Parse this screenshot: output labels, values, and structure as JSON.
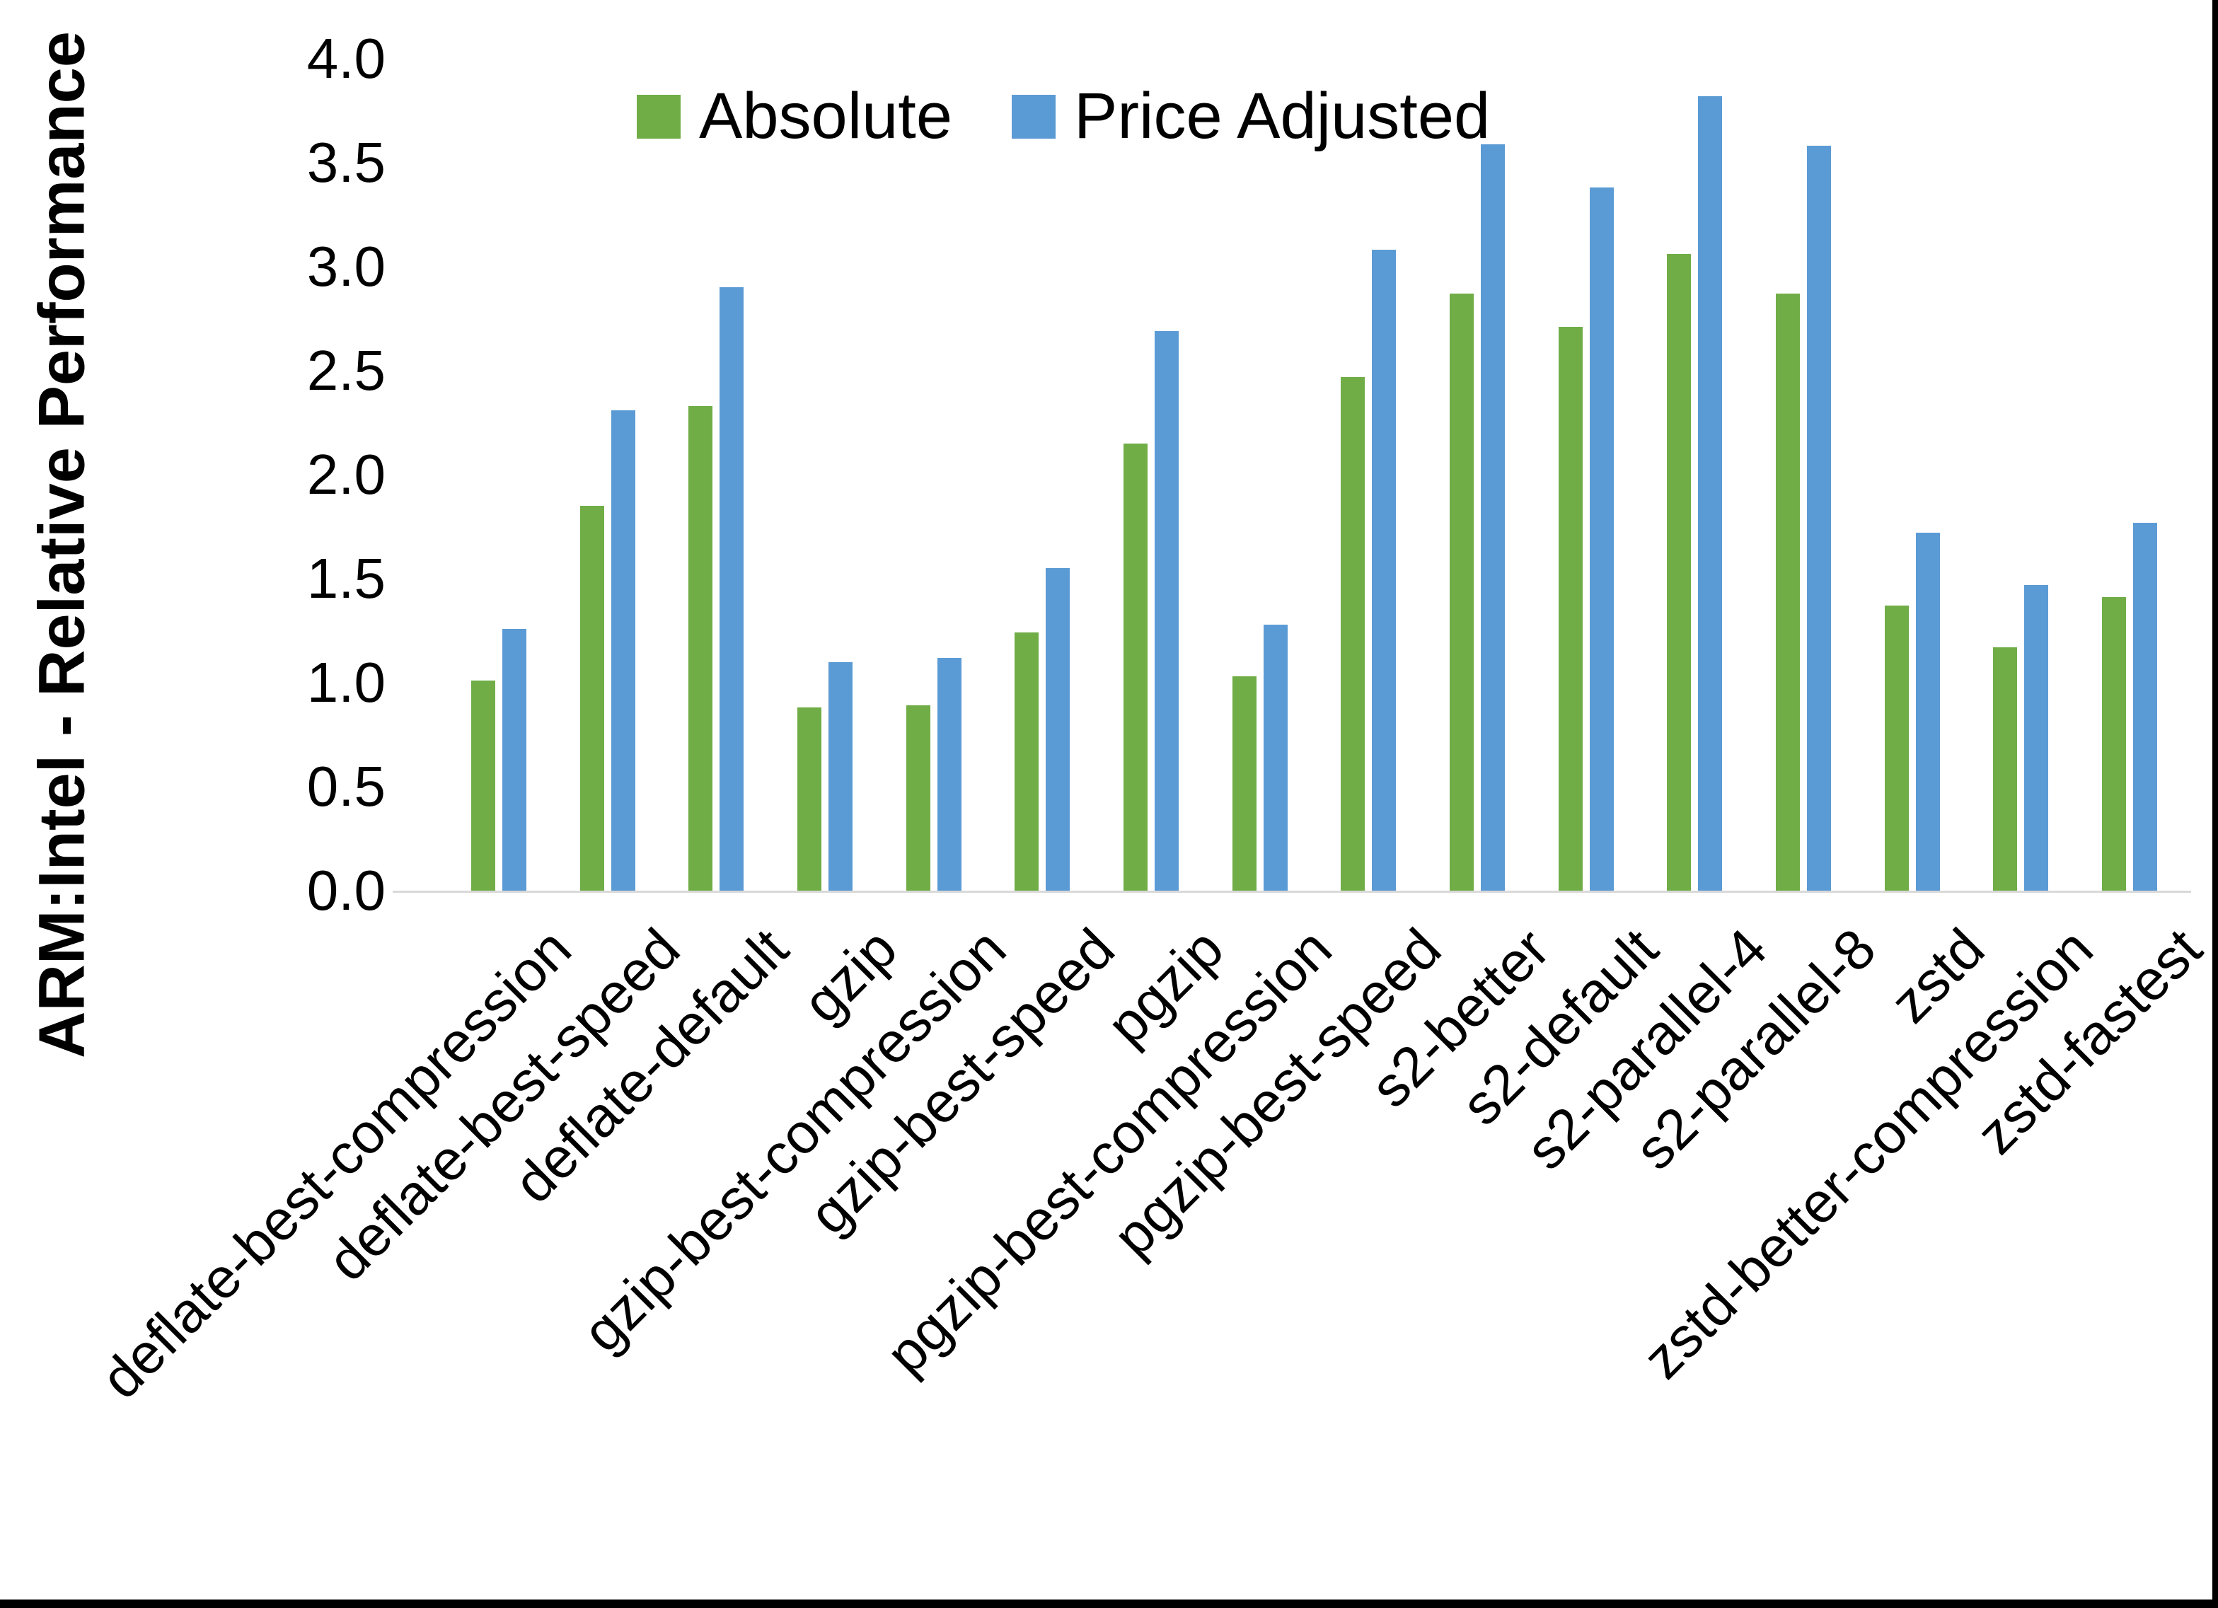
{
  "chart_data": {
    "type": "bar",
    "title": "",
    "xlabel": "",
    "ylabel": "ARM:Intel - Relative Performance",
    "ylim": [
      0.0,
      4.0
    ],
    "ytick_labels": [
      "0.0",
      "0.5",
      "1.0",
      "1.5",
      "2.0",
      "2.5",
      "3.0",
      "3.5",
      "4.0"
    ],
    "grid": "off",
    "legend_position": "top-center",
    "categories": [
      "deflate-best-compression",
      "deflate-best-speed",
      "deflate-default",
      "gzip",
      "gzip-best-compression",
      "gzip-best-speed",
      "pgzip",
      "pgzip-best-compression",
      "pgzip-best-speed",
      "s2-better",
      "s2-default",
      "s2-parallel-4",
      "s2-parallel-8",
      "zstd",
      "zstd-better-compression",
      "zstd-fastest"
    ],
    "series": [
      {
        "name": "Absolute",
        "color": "#70AD47",
        "values": [
          1.01,
          1.85,
          2.33,
          0.88,
          0.89,
          1.24,
          2.15,
          1.03,
          2.47,
          2.87,
          2.71,
          3.06,
          2.87,
          1.37,
          1.17,
          1.41
        ]
      },
      {
        "name": "Price Adjusted",
        "color": "#5B9BD5",
        "values": [
          1.26,
          2.31,
          2.9,
          1.1,
          1.12,
          1.55,
          2.69,
          1.28,
          3.08,
          3.59,
          3.38,
          3.82,
          3.58,
          1.72,
          1.47,
          1.77
        ]
      }
    ]
  },
  "frame": {
    "border_color": "#000000",
    "axis_line_color": "#D9D9D9"
  }
}
